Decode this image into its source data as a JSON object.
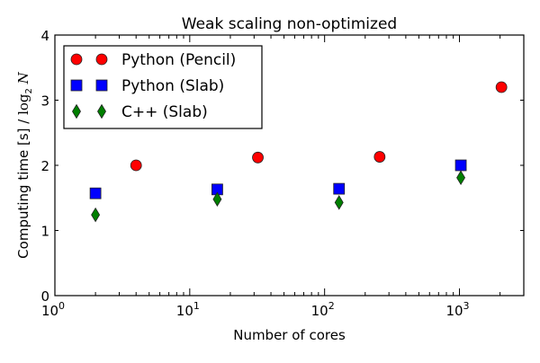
{
  "chart_data": {
    "type": "scatter",
    "title": "Weak scaling non-optimized",
    "xlabel": "Number of cores",
    "ylabel_prefix": "Computing time [s] / ",
    "ylabel_math": "log",
    "ylabel_sub": "2",
    "ylabel_var": "N",
    "xscale": "log",
    "xlim": [
      1,
      3000
    ],
    "ylim": [
      0,
      4
    ],
    "grid": false,
    "legend_position": "top-left",
    "x_ticks": [
      {
        "value": 1,
        "base": "10",
        "exp": "0"
      },
      {
        "value": 10,
        "base": "10",
        "exp": "1"
      },
      {
        "value": 100,
        "base": "10",
        "exp": "2"
      },
      {
        "value": 1000,
        "base": "10",
        "exp": "3"
      }
    ],
    "y_ticks": [
      {
        "value": 0,
        "label": "0"
      },
      {
        "value": 1,
        "label": "1"
      },
      {
        "value": 2,
        "label": "2"
      },
      {
        "value": 3,
        "label": "3"
      },
      {
        "value": 4,
        "label": "4"
      }
    ],
    "series": [
      {
        "name": "Python (Pencil)",
        "marker": "circle",
        "color": "#ff0000",
        "x": [
          4,
          32,
          256,
          2048
        ],
        "y": [
          2.0,
          2.12,
          2.13,
          3.2
        ]
      },
      {
        "name": "Python (Slab)",
        "marker": "square",
        "color": "#0000ff",
        "x": [
          2,
          16,
          128,
          1024
        ],
        "y": [
          1.57,
          1.63,
          1.64,
          2.0
        ]
      },
      {
        "name": "C++ (Slab)",
        "marker": "diamond",
        "color": "#007f00",
        "x": [
          2,
          16,
          128,
          1024
        ],
        "y": [
          1.24,
          1.48,
          1.43,
          1.81
        ]
      }
    ]
  }
}
